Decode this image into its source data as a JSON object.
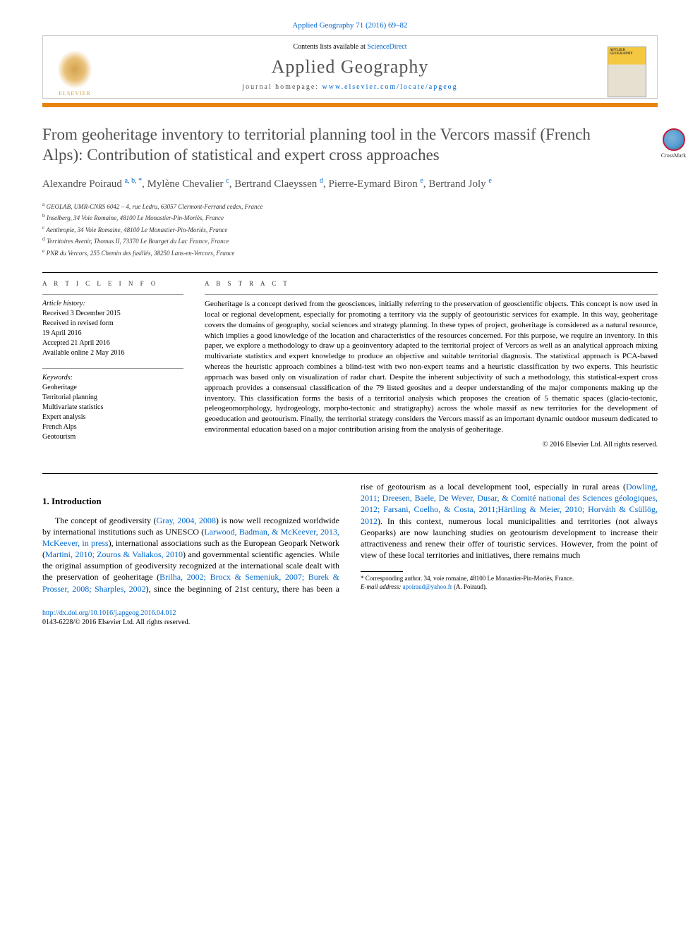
{
  "citation": "Applied Geography 71 (2016) 69–82",
  "header": {
    "contents_prefix": "Contents lists available at ",
    "contents_link": "ScienceDirect",
    "journal": "Applied Geography",
    "homepage_prefix": "journal homepage: ",
    "homepage_url": "www.elsevier.com/locate/apgeog",
    "publisher": "ELSEVIER",
    "cover_label": "APPLIED GEOGRAPHY"
  },
  "title": "From geoheritage inventory to territorial planning tool in the Vercors massif (French Alps): Contribution of statistical and expert cross approaches",
  "crossmark": "CrossMark",
  "authors_html": "Alexandre Poiraud <sup>a, b, *</sup>, Mylène Chevalier <sup>c</sup>, Bertrand Claeyssen <sup>d</sup>, Pierre-Eymard Biron <sup>e</sup>, Bertrand Joly <sup>e</sup>",
  "affiliations": [
    "a GEOLAB, UMR-CNRS 6042 – 4, rue Ledru, 63057 Clermont-Ferrand cedex, France",
    "b Inselberg, 34 Voie Romaine, 48100 Le Monastier-Pin-Moriès, France",
    "c Aenthropie, 34 Voie Romaine, 48100 Le Monastier-Pin-Moriès, France",
    "d Territoires Avenir, Thomas II, 73370 Le Bourget du Lac France, France",
    "e PNR du Vercors, 255 Chemin des fusillés, 38250 Lans-en-Vercors, France"
  ],
  "info": {
    "heading": "A R T I C L E   I N F O",
    "history_label": "Article history:",
    "history": [
      "Received 3 December 2015",
      "Received in revised form",
      "19 April 2016",
      "Accepted 21 April 2016",
      "Available online 2 May 2016"
    ],
    "keywords_label": "Keywords:",
    "keywords": [
      "Geoheritage",
      "Territorial planning",
      "Multivariate statistics",
      "Expert analysis",
      "French Alps",
      "Geotourism"
    ]
  },
  "abstract": {
    "heading": "A B S T R A C T",
    "text": "Geoheritage is a concept derived from the geosciences, initially referring to the preservation of geoscientific objects. This concept is now used in local or regional development, especially for promoting a territory via the supply of geotouristic services for example. In this way, geoheritage covers the domains of geography, social sciences and strategy planning. In these types of project, geoheritage is considered as a natural resource, which implies a good knowledge of the location and characteristics of the resources concerned. For this purpose, we require an inventory. In this paper, we explore a methodology to draw up a geoinventory adapted to the territorial project of Vercors as well as an analytical approach mixing multivariate statistics and expert knowledge to produce an objective and suitable territorial diagnosis. The statistical approach is PCA-based whereas the heuristic approach combines a blind-test with two non-expert teams and a heuristic classification by two experts. This heuristic approach was based only on visualization of radar chart. Despite the inherent subjectivity of such a methodology, this statistical-expert cross approach provides a consensual classification of the 79 listed geosites and a deeper understanding of the major components making up the inventory. This classification forms the basis of a territorial analysis which proposes the creation of 5 thematic spaces (glacio-tectonic, peleogeomorphology, hydrogeology, morpho-tectonic and stratigraphy) across the whole massif as new territories for the development of geoeducation and geotourism. Finally, the territorial strategy considers the Vercors massif as an important dynamic outdoor museum dedicated to environmental education based on a major contribution arising from the analysis of geoheritage.",
    "copyright": "© 2016 Elsevier Ltd. All rights reserved."
  },
  "section1": {
    "heading": "1. Introduction",
    "para1_pre": "The concept of geodiversity (",
    "para1_ref1": "Gray, 2004, 2008",
    "para1_mid1": ") is now well recognized worldwide by international institutions such as UNESCO (",
    "para1_ref2": "Larwood, Badman, & McKeever, 2013, McKeever, in press",
    "para1_mid2": "), international associations such as the European Geopark Network (",
    "para1_ref3": "Martini, 2010; Zouros & Valiakos, 2010",
    "para1_mid3": ") and governmental scientific agencies. While the original assumption of ",
    "para1_cont": "geodiversity recognized at the international scale dealt with the preservation of geoheritage (",
    "para1_ref4": "Brilha, 2002; Brocx & Semeniuk, 2007; Burek & Prosser, 2008; Sharples, 2002",
    "para1_mid4": "), since the beginning of 21st century, there has been a rise of geotourism as a local development tool, especially in rural areas (",
    "para1_ref5": "Dowling, 2011; Dreesen, Baele, De Wever, Dusar, & Comité national des Sciences géologiques, 2012; Farsani, Coelho, & Costa, 2011;Härtling & Meier, 2010; Horváth & Csüllög, 2012",
    "para1_mid5": "). In this context, numerous local municipalities and territories (not always Geoparks) are now launching studies on geotourism development to increase their attractiveness and renew their offer of touristic services. However, from the point of view of these local territories and initiatives, there remains much"
  },
  "footnote": {
    "corr": "* Corresponding author. 34, voie romaine, 48100 Le Monastier-Pin-Moriès, France.",
    "email_label": "E-mail address: ",
    "email": "apoiraud@yahoo.fr",
    "email_suffix": " (A. Poiraud)."
  },
  "doi": {
    "url": "http://dx.doi.org/10.1016/j.apgeog.2016.04.012",
    "issn": "0143-6228/© 2016 Elsevier Ltd. All rights reserved."
  },
  "colors": {
    "link": "#0066cc",
    "orange_bar": "#e8830c",
    "title_gray": "#505050"
  }
}
